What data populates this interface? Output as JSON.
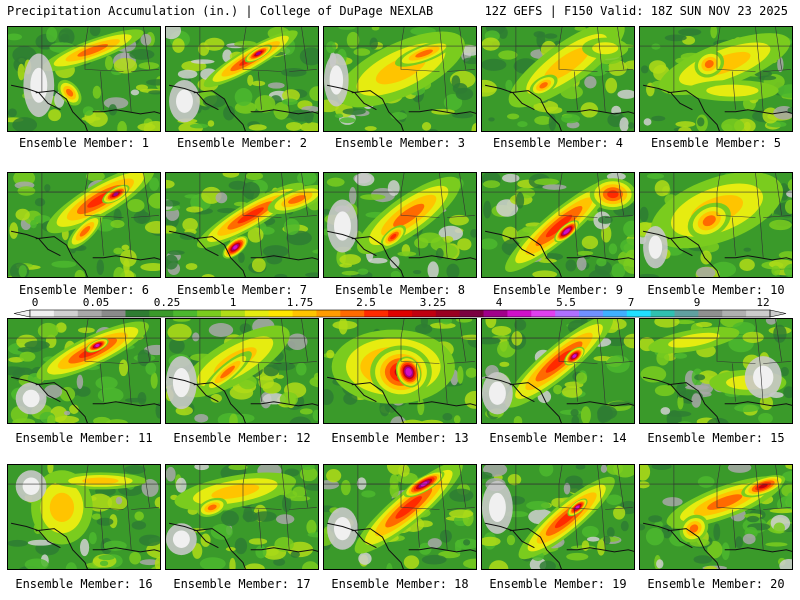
{
  "header": {
    "title": "Precipitation Accumulation (in.) | College of DuPage NEXLAB",
    "run_info": "12Z GEFS | F150 Valid: 18Z SUN NOV 23 2025"
  },
  "panels": [
    {
      "label": "Ensemble Member: 1"
    },
    {
      "label": "Ensemble Member: 2"
    },
    {
      "label": "Ensemble Member: 3"
    },
    {
      "label": "Ensemble Member: 4"
    },
    {
      "label": "Ensemble Member: 5"
    },
    {
      "label": "Ensemble Member: 6"
    },
    {
      "label": "Ensemble Member: 7"
    },
    {
      "label": "Ensemble Member: 8"
    },
    {
      "label": "Ensemble Member: 9"
    },
    {
      "label": "Ensemble Member: 10"
    },
    {
      "label": "Ensemble Member: 11"
    },
    {
      "label": "Ensemble Member: 12"
    },
    {
      "label": "Ensemble Member: 13"
    },
    {
      "label": "Ensemble Member: 14"
    },
    {
      "label": "Ensemble Member: 15"
    },
    {
      "label": "Ensemble Member: 16"
    },
    {
      "label": "Ensemble Member: 17"
    },
    {
      "label": "Ensemble Member: 18"
    },
    {
      "label": "Ensemble Member: 19"
    },
    {
      "label": "Ensemble Member: 20"
    }
  ],
  "colorbar": {
    "tick_labels": [
      "0",
      "0.05",
      "0.25",
      "1",
      "1.75",
      "2.5",
      "3.25",
      "4",
      "5.5",
      "7",
      "9",
      "12"
    ],
    "colors": [
      "#f0f0f0",
      "#d0d0d0",
      "#a8a8a8",
      "#8a8a8a",
      "#2e7d32",
      "#3a9a2a",
      "#4cb82e",
      "#7acc1e",
      "#b0dc18",
      "#e6ec10",
      "#ffe600",
      "#ffc400",
      "#ff9c00",
      "#ff6a00",
      "#ff2a00",
      "#e00000",
      "#c00010",
      "#9a0020",
      "#7a0040",
      "#a0008a",
      "#d010c8",
      "#e040f0",
      "#b070ff",
      "#7090ff",
      "#40b0ff",
      "#20e0ff",
      "#30c0b0",
      "#60a0a0",
      "#909090",
      "#b0b0b0",
      "#cccccc"
    ]
  }
}
